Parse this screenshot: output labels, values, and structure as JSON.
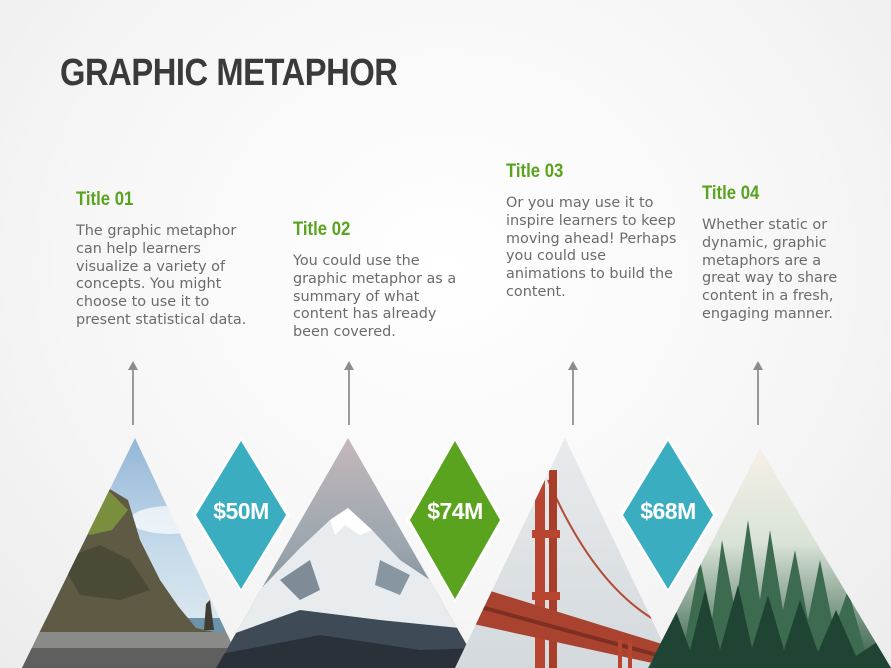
{
  "slide": {
    "title": "GRAPHIC METAPHOR"
  },
  "items": [
    {
      "title": "Title 01",
      "body": "The graphic metaphor can help learners visualize a variety of concepts. You might choose to use it to present statistical data."
    },
    {
      "title": "Title 02",
      "body": "You could use the graphic metaphor as a summary of what content has already been covered."
    },
    {
      "title": "Title 03",
      "body": "Or you may use it to inspire learners to keep moving ahead! Perhaps you could use animations to build the content."
    },
    {
      "title": "Title 04",
      "body": "Whether static or dynamic, graphic metaphors are a great way to share content in a fresh, engaging manner."
    }
  ],
  "badges": [
    {
      "value": "$50M",
      "color": "#3aadc0"
    },
    {
      "value": "$74M",
      "color": "#5aa31e"
    },
    {
      "value": "$68M",
      "color": "#3aadc0"
    }
  ],
  "images": [
    "coastal-cliff-photo",
    "snowy-mountain-photo",
    "suspension-bridge-photo",
    "misty-forest-photo"
  ]
}
